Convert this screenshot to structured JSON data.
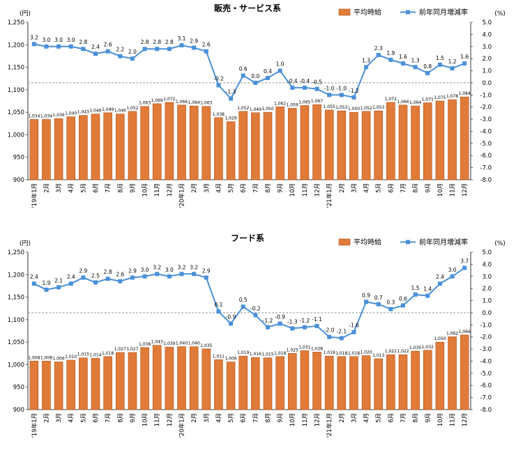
{
  "chart_data": [
    {
      "type": "bar+line",
      "title": "販売・サービス系",
      "y_left_unit": "(円)",
      "y_right_unit": "(%)",
      "ylim_left": [
        900,
        1250
      ],
      "ylim_right": [
        -8.0,
        5.0
      ],
      "y_left_ticks": [
        "900",
        "950",
        "1,000",
        "1,050",
        "1,100",
        "1,150",
        "1,200",
        "1,250"
      ],
      "y_right_ticks": [
        "-8.0",
        "-7.0",
        "-6.0",
        "-5.0",
        "-4.0",
        "-3.0",
        "-2.0",
        "-1.0",
        "0.0",
        "1.0",
        "2.0",
        "3.0",
        "4.0",
        "5.0"
      ],
      "categories": [
        "'19年1月",
        "2月",
        "3月",
        "4月",
        "5月",
        "6月",
        "7月",
        "8月",
        "9月",
        "10月",
        "11月",
        "12月",
        "'20年1月",
        "2月",
        "3月",
        "4月",
        "5月",
        "6月",
        "7月",
        "8月",
        "9月",
        "10月",
        "11月",
        "12月",
        "'21年1月",
        "2月",
        "3月",
        "4月",
        "5月",
        "6月",
        "7月",
        "8月",
        "9月",
        "10月",
        "11月",
        "12月"
      ],
      "series": [
        {
          "name": "平均時給",
          "kind": "bar",
          "color": "#E07B39",
          "values": [
            1034,
            1034,
            1036,
            1040,
            1043,
            1046,
            1049,
            1046,
            1052,
            1063,
            1069,
            1072,
            1066,
            1064,
            1063,
            1038,
            1029,
            1052,
            1049,
            1050,
            1062,
            1059,
            1065,
            1067,
            1055,
            1053,
            1050,
            1052,
            1053,
            1072,
            1066,
            1064,
            1071,
            1075,
            1078,
            1084
          ],
          "labels": [
            "1,034",
            "1,034",
            "1,036",
            "1,040",
            "1,043",
            "1,046",
            "1,049",
            "1,046",
            "1,052",
            "1,063",
            "1,069",
            "1,072",
            "1,066",
            "1,064",
            "1,063",
            "1,038",
            "1,029",
            "1,052",
            "1,049",
            "1,050",
            "1,062",
            "1,059",
            "1,065",
            "1,067",
            "1,055",
            "1,053",
            "1,050",
            "1,052",
            "1,053",
            "1,072",
            "1,066",
            "1,064",
            "1,071",
            "1,075",
            "1,078",
            "1,084"
          ]
        },
        {
          "name": "前年同月増減率",
          "kind": "line",
          "color": "#4A90D9",
          "values": [
            3.2,
            3.0,
            3.0,
            3.0,
            2.8,
            2.4,
            2.6,
            2.2,
            2.0,
            2.8,
            2.8,
            2.8,
            3.1,
            2.9,
            2.6,
            -0.2,
            -1.3,
            0.6,
            0.0,
            0.4,
            1.0,
            -0.4,
            -0.4,
            -0.5,
            -1.0,
            -1.0,
            -1.2,
            1.3,
            2.3,
            1.9,
            1.6,
            1.3,
            0.8,
            1.5,
            1.2,
            1.6
          ],
          "labels": [
            "3.2",
            "3.0",
            "3.0",
            "3.0",
            "2.8",
            "2.4",
            "2.6",
            "2.2",
            "2.0",
            "2.8",
            "2.8",
            "2.8",
            "3.1",
            "2.9",
            "2.6",
            "-0.2",
            "-1.3",
            "0.6",
            "0.0",
            "0.4",
            "1.0",
            "-0.4",
            "-0.4",
            "-0.5",
            "-1.0",
            "-1.0",
            "-1.2",
            "1.3",
            "2.3",
            "1.9",
            "1.6",
            "1.3",
            "0.8",
            "1.5",
            "1.2",
            "1.6"
          ]
        }
      ]
    },
    {
      "type": "bar+line",
      "title": "フード系",
      "y_left_unit": "(円)",
      "y_right_unit": "(%)",
      "ylim_left": [
        900,
        1250
      ],
      "ylim_right": [
        -8.0,
        5.0
      ],
      "y_left_ticks": [
        "900",
        "950",
        "1,000",
        "1,050",
        "1,100",
        "1,150",
        "1,200",
        "1,250"
      ],
      "y_right_ticks": [
        "-8.0",
        "-7.0",
        "-6.0",
        "-5.0",
        "-4.0",
        "-3.0",
        "-2.0",
        "-1.0",
        "0.0",
        "1.0",
        "2.0",
        "3.0",
        "4.0",
        "5.0"
      ],
      "categories": [
        "'19年1月",
        "2月",
        "3月",
        "4月",
        "5月",
        "6月",
        "7月",
        "8月",
        "9月",
        "10月",
        "11月",
        "12月",
        "'20年1月",
        "2月",
        "3月",
        "4月",
        "5月",
        "6月",
        "7月",
        "8月",
        "9月",
        "10月",
        "11月",
        "12月",
        "'21年1月",
        "2月",
        "3月",
        "4月",
        "5月",
        "6月",
        "7月",
        "8月",
        "9月",
        "10月",
        "11月",
        "12月"
      ],
      "series": [
        {
          "name": "平均時給",
          "kind": "bar",
          "color": "#E07B39",
          "values": [
            1008,
            1008,
            1006,
            1010,
            1015,
            1014,
            1018,
            1027,
            1027,
            1038,
            1043,
            1039,
            1040,
            1040,
            1035,
            1011,
            1006,
            1019,
            1016,
            1015,
            1018,
            1025,
            1031,
            1028,
            1019,
            1018,
            1018,
            1020,
            1013,
            1022,
            1022,
            1030,
            1032,
            1050,
            1062,
            1066
          ],
          "labels": [
            "1,008",
            "1,008",
            "1,006",
            "1,010",
            "1,015",
            "1,014",
            "1,018",
            "1,027",
            "1,027",
            "1,038",
            "1,043",
            "1,039",
            "1,040",
            "1,040",
            "1,035",
            "1,011",
            "1,006",
            "1,019",
            "1,016",
            "1,015",
            "1,018",
            "1,025",
            "1,031",
            "1,028",
            "1,019",
            "1,018",
            "1,018",
            "1,020",
            "1,013",
            "1,022",
            "1,022",
            "1,030",
            "1,032",
            "1,050",
            "1,062",
            "1,066"
          ]
        },
        {
          "name": "前年同月増減率",
          "kind": "line",
          "color": "#4A90D9",
          "values": [
            2.4,
            1.9,
            2.1,
            2.4,
            2.9,
            2.5,
            2.8,
            2.6,
            2.9,
            3.0,
            3.2,
            3.0,
            3.2,
            3.2,
            2.9,
            0.1,
            -0.9,
            0.5,
            -0.2,
            -1.2,
            -0.9,
            -1.3,
            -1.2,
            -1.1,
            -2.0,
            -2.1,
            -1.6,
            0.9,
            0.7,
            0.3,
            0.6,
            1.5,
            1.4,
            2.4,
            3.0,
            3.7
          ],
          "labels": [
            "2.4",
            "1.9",
            "2.1",
            "2.4",
            "2.9",
            "2.5",
            "2.8",
            "2.6",
            "2.9",
            "3.0",
            "3.2",
            "3.0",
            "3.2",
            "3.2",
            "2.9",
            "0.1",
            "-0.9",
            "0.5",
            "-0.2",
            "-1.2",
            "-0.9",
            "-1.3",
            "-1.2",
            "-1.1",
            "-2.0",
            "-2.1",
            "-1.6",
            "0.9",
            "0.7",
            "0.3",
            "0.6",
            "1.5",
            "1.4",
            "2.4",
            "3.0",
            "3.7"
          ]
        }
      ]
    }
  ]
}
